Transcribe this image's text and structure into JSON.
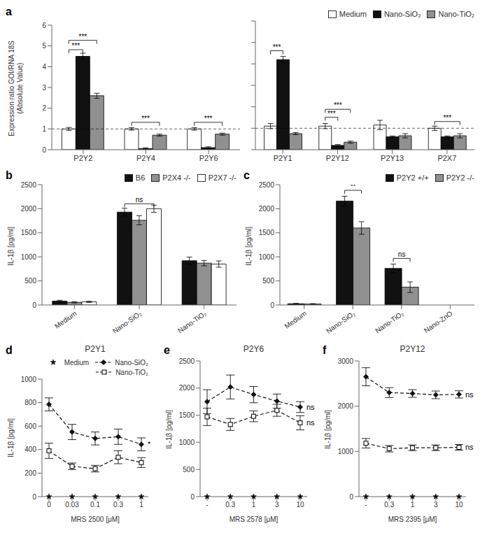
{
  "chart_data": [
    {
      "type": "bar",
      "panel_label": "a",
      "categories": [
        "P2Y2",
        "P2Y4",
        "P2Y6"
      ],
      "ylabel": "Expression ratio GOI/RNA 18S\n(Absolute Value)",
      "series": [
        {
          "name": "Medium",
          "color": "#ffffff",
          "values": [
            1.0,
            1.0,
            1.0
          ],
          "errors": [
            0.07,
            0.06,
            0.06
          ]
        },
        {
          "name": "Nano-SiO₂",
          "color": "#111111",
          "values": [
            4.5,
            0.05,
            0.1
          ],
          "errors": [
            0.15,
            0.04,
            0.04
          ]
        },
        {
          "name": "Nano-TiO₂",
          "color": "#909090",
          "values": [
            2.6,
            0.7,
            0.75
          ],
          "errors": [
            0.12,
            0.05,
            0.05
          ]
        }
      ],
      "ylim": [
        0,
        6
      ],
      "yticks": [
        0,
        1,
        2,
        3,
        4,
        5,
        6
      ],
      "reference_lines": [
        {
          "y": 1.0,
          "line_style": "dashed"
        }
      ],
      "annotations": [
        {
          "text": "***",
          "category": "P2Y2",
          "from": "Medium",
          "to": "Nano-SiO₂",
          "y": 4.65
        },
        {
          "text": "***",
          "category": "P2Y2",
          "from": "Medium",
          "to": "Nano-TiO₂",
          "y": 5.1
        },
        {
          "text": "***",
          "category": "P2Y4",
          "from": "Medium",
          "to": "Nano-TiO₂",
          "y": 1.15
        },
        {
          "text": "***",
          "category": "P2Y6",
          "from": "Medium",
          "to": "Nano-TiO₂",
          "y": 1.15
        }
      ]
    },
    {
      "type": "bar",
      "categories": [
        "P2Y1",
        "P2Y12",
        "P2Y13",
        "P2X7"
      ],
      "series": [
        {
          "name": "Medium",
          "color": "#ffffff",
          "values": [
            1.1,
            1.1,
            1.15,
            1.0
          ],
          "errors": [
            0.12,
            0.12,
            0.22,
            0.1
          ]
        },
        {
          "name": "Nano-SiO₂",
          "color": "#111111",
          "values": [
            4.2,
            0.2,
            0.6,
            0.6
          ],
          "errors": [
            0.15,
            0.04,
            0.04,
            0.04
          ]
        },
        {
          "name": "Nano-TiO₂",
          "color": "#909090",
          "values": [
            0.75,
            0.35,
            0.65,
            0.65
          ],
          "errors": [
            0.05,
            0.05,
            0.1,
            0.1
          ]
        }
      ],
      "ylim": [
        0,
        6
      ],
      "yticks": [
        0,
        1,
        2,
        3,
        4,
        5,
        6
      ],
      "tick_labels": "x",
      "legend": "upper right",
      "reference_lines": [
        {
          "y": 1.0,
          "line_style": "dashed"
        }
      ],
      "annotations": [
        {
          "text": "***",
          "category": "P2Y1",
          "from": "Medium",
          "to": "Nano-SiO₂",
          "y": 4.45
        },
        {
          "text": "***",
          "category": "P2Y12",
          "from": "Medium",
          "to": "Nano-SiO₂",
          "y": 1.35
        },
        {
          "text": "***",
          "category": "P2Y12",
          "from": "Medium",
          "to": "Nano-TiO₂",
          "y": 1.72
        },
        {
          "text": "***",
          "category": "P2X7",
          "from": "Medium",
          "to": "Nano-TiO₂",
          "y": 1.15
        }
      ]
    },
    {
      "type": "bar",
      "panel_label": "b",
      "categories": [
        "Medium",
        "Nano-SiO₂",
        "Nano-TiO₂"
      ],
      "ylabel": "IL-1β [pg/ml]",
      "series": [
        {
          "name": "B6",
          "color": "#111111",
          "values": [
            80,
            1930,
            920
          ],
          "errors": [
            18,
            80,
            75
          ]
        },
        {
          "name": "P2X4 -/-",
          "color": "#909090",
          "values": [
            55,
            1760,
            870
          ],
          "errors": [
            12,
            95,
            55
          ]
        },
        {
          "name": "P2X7 -/-",
          "color": "#ffffff",
          "values": [
            65,
            2000,
            850
          ],
          "errors": [
            12,
            75,
            65
          ]
        }
      ],
      "ylim": [
        0,
        2500
      ],
      "yticks": [
        0,
        500,
        1000,
        1500,
        2000,
        2500
      ],
      "legend": "upper right",
      "annotations": [
        {
          "text": "ns",
          "category": "Nano-SiO₂",
          "from": "B6",
          "to": "P2X7 -/-",
          "y": 2030
        }
      ]
    },
    {
      "type": "bar",
      "panel_label": "c",
      "categories": [
        "Medium",
        "Nano-SiO₂",
        "Nano-TiO₂",
        "Nano-ZnO"
      ],
      "ylabel": "IL-1β [pg/ml]",
      "series": [
        {
          "name": "P2Y2 +/+",
          "color": "#111111",
          "values": [
            25,
            2160,
            760,
            0
          ],
          "errors": [
            8,
            100,
            90,
            0
          ]
        },
        {
          "name": "P2Y2 -/-",
          "color": "#909090",
          "values": [
            20,
            1600,
            370,
            0
          ],
          "errors": [
            8,
            130,
            110,
            0
          ]
        }
      ],
      "ylim": [
        0,
        2500
      ],
      "yticks": [
        0,
        500,
        1000,
        1500,
        2000,
        2500
      ],
      "legend": "upper right",
      "annotations": [
        {
          "text": "**",
          "category": "Nano-SiO₂",
          "from": "P2Y2 +/+",
          "to": "P2Y2 -/-",
          "y": 2310
        },
        {
          "text": "ns",
          "category": "Nano-TiO₂",
          "from": "P2Y2 +/+",
          "to": "P2Y2 -/-",
          "y": 895
        }
      ]
    },
    {
      "type": "line",
      "panel_label": "d",
      "title": "P2Y1",
      "xlabel": "MRS 2500 [μM]",
      "ylabel": "IL-1β [pg/ml]",
      "categories": [
        "0",
        "0.03",
        "0.1",
        "0.3",
        "1"
      ],
      "series": [
        {
          "name": "Medium",
          "color": "#111111",
          "marker": "star",
          "line_style": "none",
          "values": [
            0,
            0,
            0,
            0,
            0
          ]
        },
        {
          "name": "Nano-SiO₂",
          "color": "#111111",
          "marker": "diamond",
          "line_style": "dashed",
          "values": [
            785,
            550,
            495,
            510,
            445
          ],
          "errors": [
            55,
            65,
            55,
            65,
            55
          ]
        },
        {
          "name": "Nano-TiO₂",
          "color": "#111111",
          "marker": "open_square",
          "line_style": "dashed",
          "values": [
            390,
            258,
            238,
            335,
            290
          ],
          "errors": [
            65,
            28,
            28,
            55,
            42
          ]
        }
      ],
      "ylim": [
        0,
        1000
      ],
      "yticks": [
        0,
        200,
        400,
        600,
        800,
        1000
      ],
      "legend": "upper right",
      "annotations": [
        {
          "text": "*",
          "category": "1",
          "y": 445
        }
      ]
    },
    {
      "type": "line",
      "panel_label": "e",
      "title": "P2Y6",
      "xlabel": "MRS 2578 [μM]",
      "ylabel": "IL-1β [pg/ml]",
      "categories": [
        "-",
        "0.3",
        "1",
        "3",
        "10"
      ],
      "series": [
        {
          "name": "Medium",
          "color": "#111111",
          "marker": "star",
          "line_style": "none",
          "values": [
            0,
            0,
            0,
            0,
            0
          ]
        },
        {
          "name": "Nano-SiO₂",
          "color": "#111111",
          "marker": "diamond",
          "line_style": "dashed",
          "values": [
            1750,
            2020,
            1880,
            1760,
            1650
          ],
          "errors": [
            220,
            220,
            150,
            130,
            100
          ]
        },
        {
          "name": "Nano-TiO₂",
          "color": "#111111",
          "marker": "open_square",
          "line_style": "dashed",
          "values": [
            1470,
            1330,
            1480,
            1590,
            1360
          ],
          "errors": [
            160,
            110,
            100,
            110,
            130
          ]
        }
      ],
      "ylim": [
        0,
        2500
      ],
      "yticks": [
        0,
        500,
        1000,
        1500,
        2000,
        2500
      ],
      "annotations": [
        {
          "text": "ns",
          "category": "10",
          "y": 1650
        },
        {
          "text": "ns",
          "category": "10",
          "y": 1370
        }
      ]
    },
    {
      "type": "line",
      "panel_label": "f",
      "title": "P2Y12",
      "xlabel": "MRS 2395 [μM]",
      "ylabel": "IL-1β [pg/ml]",
      "categories": [
        "-",
        "0.3",
        "1",
        "3",
        "10"
      ],
      "series": [
        {
          "name": "Medium",
          "color": "#111111",
          "marker": "star",
          "line_style": "none",
          "values": [
            0,
            0,
            0,
            0,
            0
          ]
        },
        {
          "name": "Nano-SiO₂",
          "color": "#111111",
          "marker": "diamond",
          "line_style": "dashed",
          "values": [
            2650,
            2300,
            2280,
            2250,
            2260
          ],
          "errors": [
            200,
            110,
            85,
            85,
            80
          ]
        },
        {
          "name": "Nano-TiO₂",
          "color": "#111111",
          "marker": "open_square",
          "line_style": "dashed",
          "values": [
            1180,
            1060,
            1080,
            1080,
            1090
          ],
          "errors": [
            105,
            72,
            62,
            62,
            62
          ]
        }
      ],
      "ylim": [
        0,
        3000
      ],
      "yticks": [
        0,
        1000,
        2000,
        3000
      ],
      "annotations": [
        {
          "text": "ns",
          "category": "10",
          "y": 2260
        },
        {
          "text": "ns",
          "category": "10",
          "y": 1090
        }
      ]
    }
  ]
}
